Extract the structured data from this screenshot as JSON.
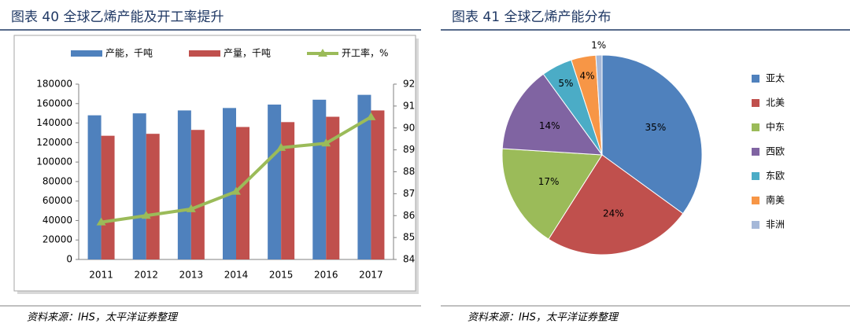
{
  "chart_data": [
    {
      "type": "bar",
      "title": "图表 40 全球乙烯产能及开工率提升",
      "source": "资料来源：IHS，太平洋证券整理",
      "categories": [
        "2011",
        "2012",
        "2013",
        "2014",
        "2015",
        "2016",
        "2017"
      ],
      "series": [
        {
          "name": "产能，千吨",
          "color": "#4f81bd",
          "values": [
            148000,
            150000,
            153000,
            155500,
            159000,
            164000,
            169000
          ]
        },
        {
          "name": "产量，千吨",
          "color": "#c0504d",
          "values": [
            127000,
            129000,
            133000,
            136000,
            141000,
            146500,
            153000
          ]
        },
        {
          "name": "开工率，%",
          "color": "#9bbb59",
          "type": "line",
          "axis": "y2",
          "values": [
            85.7,
            86.0,
            86.3,
            87.1,
            89.1,
            89.3,
            90.5
          ]
        }
      ],
      "ylim": [
        0,
        180000
      ],
      "yticks": [
        0,
        20000,
        40000,
        60000,
        80000,
        100000,
        120000,
        140000,
        160000,
        180000
      ],
      "y2lim": [
        84,
        92
      ],
      "y2ticks": [
        84,
        85,
        86,
        87,
        88,
        89,
        90,
        91,
        92
      ],
      "legend": "top"
    },
    {
      "type": "pie",
      "title": "图表 41 全球乙烯产能分布",
      "source": "资料来源：IHS，太平洋证券整理",
      "categories": [
        "亚太",
        "北美",
        "中东",
        "西欧",
        "东欧",
        "南美",
        "非洲"
      ],
      "values": [
        35,
        24,
        17,
        14,
        5,
        4,
        1
      ],
      "value_labels": [
        "35%",
        "24%",
        "17%",
        "14%",
        "5%",
        "4%",
        "1%"
      ],
      "colors": [
        "#4f81bd",
        "#c0504d",
        "#9bbb59",
        "#8064a2",
        "#4bacc6",
        "#f79646",
        "#a5b8d8"
      ],
      "legend": "right"
    }
  ]
}
